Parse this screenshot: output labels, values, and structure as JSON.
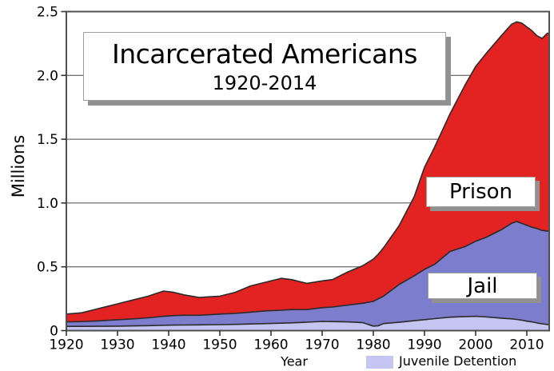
{
  "title_box": {
    "title": "Incarcerated Americans",
    "subtitle": "1920-2014"
  },
  "labels": {
    "prison": "Prison",
    "jail": "Jail",
    "millions": "Millions",
    "year": "Year",
    "legend_juvenile": "Juvenile Detention"
  },
  "colors": {
    "prison": "#e32222",
    "jail": "#7d7dcd",
    "juvenile": "#c5c5f2",
    "outline": "#2b2b2b",
    "grid": "#474747",
    "border": "#4f4f4f",
    "tick": "#333333"
  },
  "chart_data": {
    "type": "area",
    "stacked": true,
    "title": "Incarcerated Americans 1920-2014",
    "xlabel": "Year",
    "ylabel": "Millions",
    "xlim": [
      1920,
      2014.4
    ],
    "ylim": [
      0,
      2.5
    ],
    "grid": "horizontal",
    "grid_values": [
      0.5,
      1.0,
      1.5,
      2.0
    ],
    "xticks": [
      1920,
      1930,
      1940,
      1950,
      1960,
      1970,
      1980,
      1990,
      2000,
      2010
    ],
    "ytick_values": [
      0,
      0.5,
      1.0,
      1.5,
      2.0,
      2.5
    ],
    "ytick_labels": [
      "0",
      "0.5",
      "1.0",
      "1.5",
      "2.0",
      "2.5"
    ],
    "legend_position": "bottom",
    "years": [
      1920,
      1923,
      1926,
      1930,
      1933,
      1936,
      1939,
      1941,
      1943,
      1946,
      1950,
      1953,
      1956,
      1959,
      1962,
      1964,
      1967,
      1970,
      1972,
      1975,
      1978,
      1979,
      1980,
      1981,
      1982,
      1985,
      1988,
      1990,
      1992,
      1995,
      1998,
      2000,
      2002,
      2005,
      2007,
      2008,
      2009,
      2010,
      2011,
      2012,
      2013,
      2014
    ],
    "series": [
      {
        "name": "Prison",
        "note": "cumulative_top_millions = prison + jail + juvenile (top boundary of red band, in millions)",
        "cumulative_top_millions": [
          0.13,
          0.14,
          0.17,
          0.21,
          0.24,
          0.27,
          0.31,
          0.3,
          0.28,
          0.26,
          0.27,
          0.3,
          0.35,
          0.38,
          0.41,
          0.4,
          0.37,
          0.39,
          0.4,
          0.46,
          0.51,
          0.535,
          0.56,
          0.6,
          0.65,
          0.82,
          1.05,
          1.28,
          1.44,
          1.7,
          1.93,
          2.07,
          2.17,
          2.31,
          2.4,
          2.42,
          2.41,
          2.38,
          2.35,
          2.31,
          2.29,
          2.33
        ]
      },
      {
        "name": "Jail",
        "note": "cumulative_top_millions = jail + juvenile (top boundary of purple band, in millions)",
        "cumulative_top_millions": [
          0.068,
          0.071,
          0.076,
          0.085,
          0.092,
          0.1,
          0.112,
          0.118,
          0.12,
          0.12,
          0.13,
          0.135,
          0.145,
          0.155,
          0.16,
          0.165,
          0.165,
          0.18,
          0.185,
          0.2,
          0.215,
          0.222,
          0.23,
          0.25,
          0.27,
          0.36,
          0.43,
          0.48,
          0.52,
          0.62,
          0.66,
          0.7,
          0.73,
          0.79,
          0.84,
          0.855,
          0.84,
          0.825,
          0.81,
          0.8,
          0.785,
          0.78
        ]
      },
      {
        "name": "Juvenile Detention",
        "note": "cumulative_top_millions = juvenile only (top boundary of light lavender band, in millions)",
        "cumulative_top_millions": [
          0.033,
          0.033,
          0.034,
          0.035,
          0.037,
          0.039,
          0.042,
          0.043,
          0.044,
          0.045,
          0.047,
          0.049,
          0.052,
          0.055,
          0.058,
          0.061,
          0.066,
          0.072,
          0.071,
          0.068,
          0.062,
          0.048,
          0.036,
          0.038,
          0.055,
          0.065,
          0.078,
          0.086,
          0.094,
          0.105,
          0.11,
          0.112,
          0.108,
          0.098,
          0.092,
          0.088,
          0.082,
          0.074,
          0.068,
          0.06,
          0.053,
          0.048
        ]
      }
    ]
  }
}
